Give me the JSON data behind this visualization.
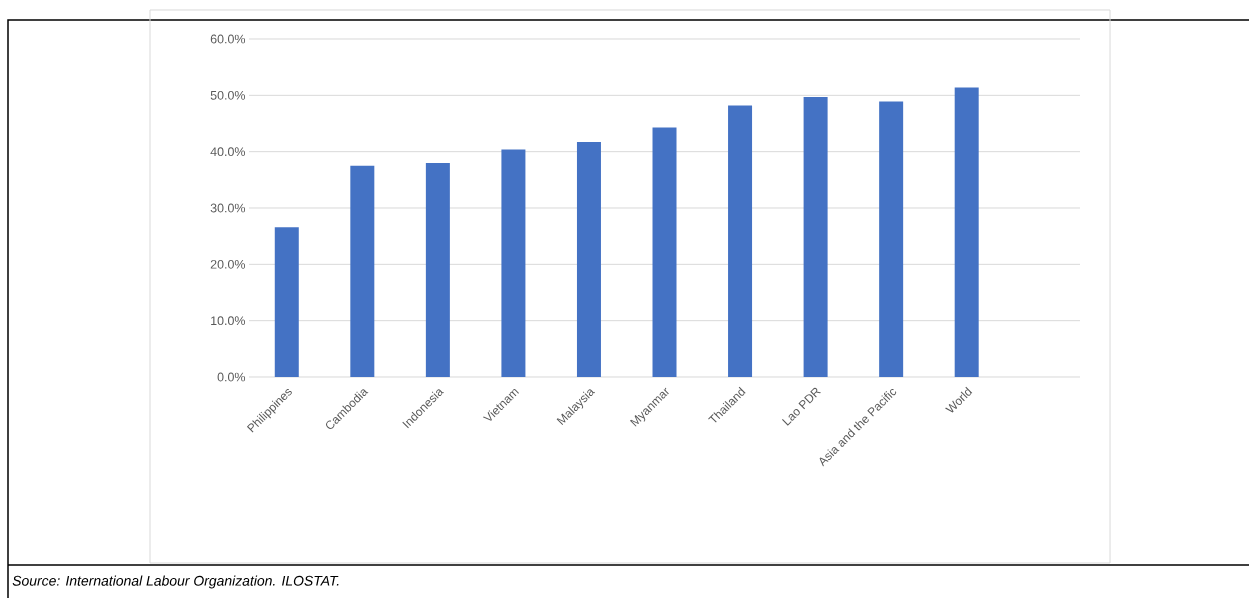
{
  "chart_data": {
    "type": "bar",
    "categories": [
      "Philippines",
      "Cambodia",
      "Indonesia",
      "Vietnam",
      "Malaysia",
      "Myanmar",
      "Thailand",
      "Lao PDR",
      "Asia and the Pacific",
      "World",
      null
    ],
    "values": [
      26.6,
      37.5,
      38.0,
      40.4,
      41.7,
      44.3,
      48.2,
      49.7,
      48.9,
      51.4,
      null
    ],
    "color": "#4472c4",
    "ylim": [
      0,
      60
    ],
    "yticks": [
      {
        "value": 0,
        "label": "0.0%"
      },
      {
        "value": 10,
        "label": "10.0%"
      },
      {
        "value": 20,
        "label": "20.0%"
      },
      {
        "value": 30,
        "label": "30.0%"
      },
      {
        "value": 40,
        "label": "40.0%"
      },
      {
        "value": 50,
        "label": "50.0%"
      },
      {
        "value": 60,
        "label": "60.0%"
      }
    ],
    "grid": "y",
    "annotations": [
      "Source: International Labour Organization. ILOSTAT."
    ]
  }
}
